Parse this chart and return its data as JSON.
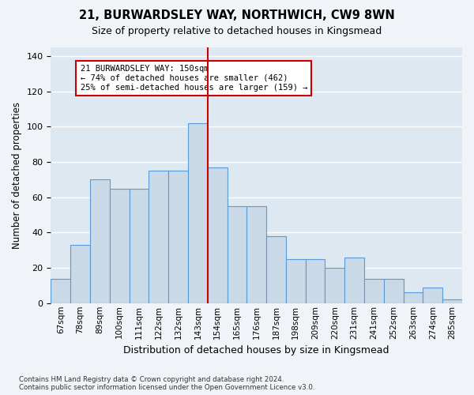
{
  "title": "21, BURWARDSLEY WAY, NORTHWICH, CW9 8WN",
  "subtitle": "Size of property relative to detached houses in Kingsmead",
  "xlabel": "Distribution of detached houses by size in Kingsmead",
  "ylabel": "Number of detached properties",
  "x_labels": [
    "67sqm",
    "78sqm",
    "89sqm",
    "100sqm",
    "111sqm",
    "122sqm",
    "132sqm",
    "143sqm",
    "154sqm",
    "165sqm",
    "176sqm",
    "187sqm",
    "198sqm",
    "209sqm",
    "220sqm",
    "231sqm",
    "241sqm",
    "252sqm",
    "263sqm",
    "274sqm",
    "285sqm"
  ],
  "heights": [
    14,
    33,
    70,
    65,
    65,
    75,
    75,
    102,
    77,
    55,
    55,
    38,
    25,
    25,
    20,
    26,
    14,
    14,
    6,
    9,
    2
  ],
  "bar_color": "#c9d9e8",
  "bar_edge_color": "#5b9bd5",
  "vline_pos": 7.5,
  "vline_color": "#cc0000",
  "annotation_text": "21 BURWARDSLEY WAY: 150sqm\n← 74% of detached houses are smaller (462)\n25% of semi-detached houses are larger (159) →",
  "annotation_box_color": "#cc0000",
  "ylim": [
    0,
    145
  ],
  "yticks": [
    0,
    20,
    40,
    60,
    80,
    100,
    120,
    140
  ],
  "background_color": "#dde8f0",
  "grid_color": "#ffffff",
  "fig_bg_color": "#f0f4f8",
  "footer": "Contains HM Land Registry data © Crown copyright and database right 2024.\nContains public sector information licensed under the Open Government Licence v3.0."
}
